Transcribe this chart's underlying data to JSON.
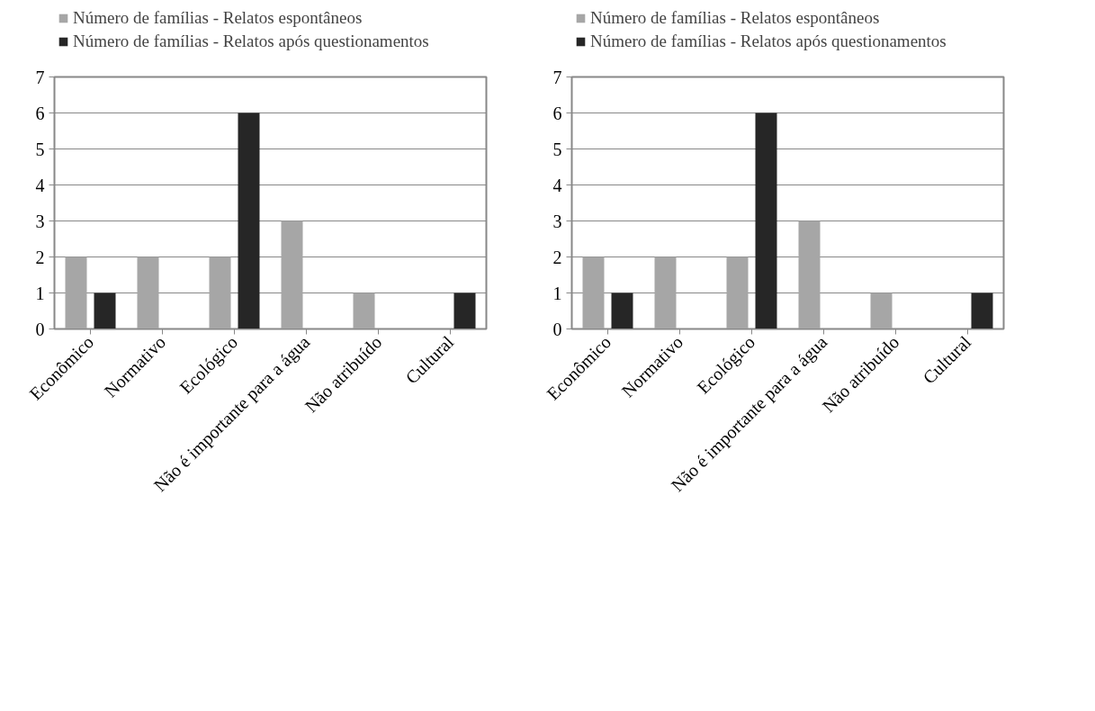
{
  "chart_data": [
    {
      "type": "bar",
      "categories": [
        "Econômico",
        "Normativo",
        "Ecológico",
        "Não é importante para a água",
        "Não atribuído",
        "Cultural"
      ],
      "series": [
        {
          "name": "Número de famílias - Relatos espontâneos",
          "color": "#a6a6a6",
          "values": [
            2,
            2,
            2,
            3,
            1,
            0
          ]
        },
        {
          "name": "Número de famílias - Relatos após questionamentos",
          "color": "#262626",
          "values": [
            1,
            0,
            6,
            0,
            0,
            1
          ]
        }
      ],
      "ylim": [
        0,
        7
      ],
      "yticks": [
        0,
        1,
        2,
        3,
        4,
        5,
        6,
        7
      ],
      "grid": "y",
      "legend": "top"
    },
    {
      "type": "bar",
      "categories": [
        "Econômico",
        "Normativo",
        "Ecológico",
        "Não é importante para a água",
        "Não atribuído",
        "Cultural"
      ],
      "series": [
        {
          "name": "Número de famílias - Relatos espontâneos",
          "color": "#a6a6a6",
          "values": [
            2,
            2,
            2,
            3,
            1,
            0
          ]
        },
        {
          "name": "Número de famílias - Relatos após questionamentos",
          "color": "#262626",
          "values": [
            1,
            0,
            6,
            0,
            0,
            1
          ]
        }
      ],
      "ylim": [
        0,
        7
      ],
      "yticks": [
        0,
        1,
        2,
        3,
        4,
        5,
        6,
        7
      ],
      "grid": "y",
      "legend": "top"
    }
  ]
}
